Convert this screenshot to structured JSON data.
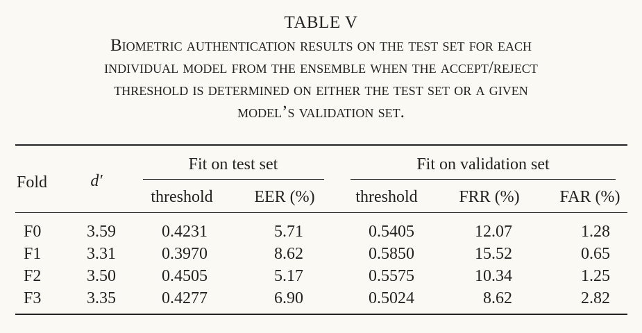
{
  "table": {
    "label": "TABLE V",
    "caption_lines": [
      "Biometric authentication results on the test set for each",
      "individual model from the ensemble when the accept/reject",
      "threshold is determined on either the test set or a given",
      "model’s validation set."
    ],
    "headers": {
      "fold": "Fold",
      "dprime": "d′",
      "group_test": "Fit on test set",
      "group_validation": "Fit on validation set",
      "test_threshold": "threshold",
      "test_eer": "EER (%)",
      "val_threshold": "threshold",
      "val_frr": "FRR (%)",
      "val_far": "FAR (%)"
    },
    "rows": [
      {
        "fold": "F0",
        "dprime": "3.59",
        "test_threshold": "0.4231",
        "test_eer": "5.71",
        "val_threshold": "0.5405",
        "val_frr": "12.07",
        "val_far": "1.28"
      },
      {
        "fold": "F1",
        "dprime": "3.31",
        "test_threshold": "0.3970",
        "test_eer": "8.62",
        "val_threshold": "0.5850",
        "val_frr": "15.52",
        "val_far": "0.65"
      },
      {
        "fold": "F2",
        "dprime": "3.50",
        "test_threshold": "0.4505",
        "test_eer": "5.17",
        "val_threshold": "0.5575",
        "val_frr": "10.34",
        "val_far": "1.25"
      },
      {
        "fold": "F3",
        "dprime": "3.35",
        "test_threshold": "0.4277",
        "test_eer": "6.90",
        "val_threshold": "0.5024",
        "val_frr": "8.62",
        "val_far": "2.82"
      }
    ]
  }
}
